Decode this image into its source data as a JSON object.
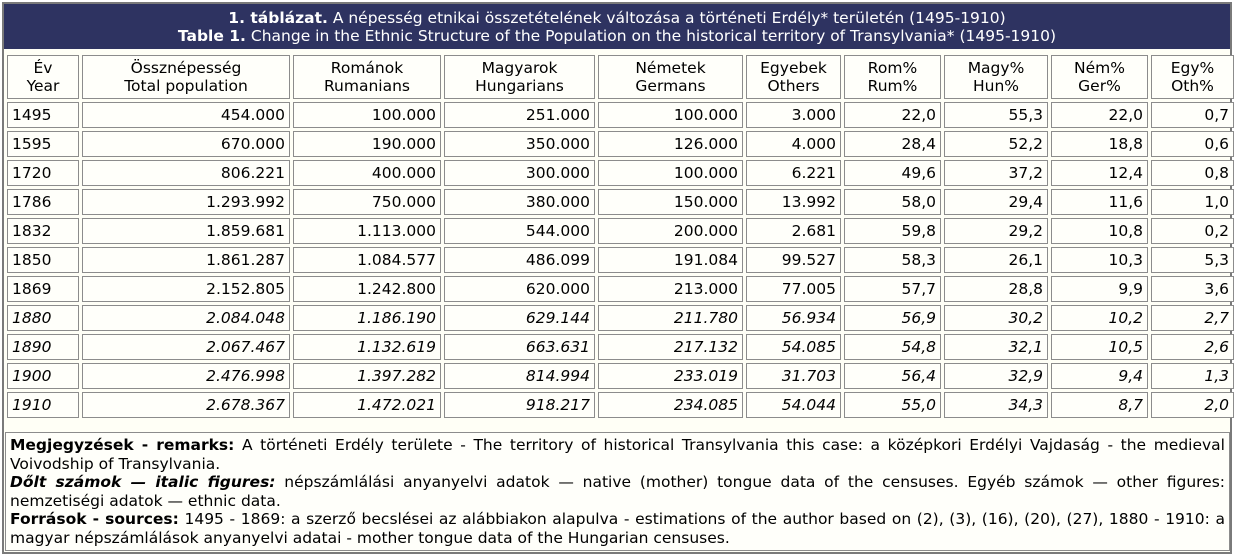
{
  "title": {
    "hu_bold": "1. táblázat.",
    "hu_rest": " A népesség etnikai összetételének változása a történeti Erdély* területén (1495-1910)",
    "en_bold": "Table 1.",
    "en_rest": " Change in the Ethnic Structure of the Population on the historical territory of Transylvania* (1495-1910)"
  },
  "columns": [
    {
      "hu": "Év",
      "en": "Year"
    },
    {
      "hu": "Össznépesség",
      "en": "Total population"
    },
    {
      "hu": "Románok",
      "en": "Rumanians"
    },
    {
      "hu": "Magyarok",
      "en": "Hungarians"
    },
    {
      "hu": "Németek",
      "en": "Germans"
    },
    {
      "hu": "Egyebek",
      "en": "Others"
    },
    {
      "hu": "Rom%",
      "en": "Rum%"
    },
    {
      "hu": "Magy%",
      "en": "Hun%"
    },
    {
      "hu": "Ném%",
      "en": "Ger%"
    },
    {
      "hu": "Egy%",
      "en": "Oth%"
    }
  ],
  "rows": [
    {
      "italic": false,
      "cells": [
        "1495",
        "454.000",
        "100.000",
        "251.000",
        "100.000",
        "3.000",
        "22,0",
        "55,3",
        "22,0",
        "0,7"
      ]
    },
    {
      "italic": false,
      "cells": [
        "1595",
        "670.000",
        "190.000",
        "350.000",
        "126.000",
        "4.000",
        "28,4",
        "52,2",
        "18,8",
        "0,6"
      ]
    },
    {
      "italic": false,
      "cells": [
        "1720",
        "806.221",
        "400.000",
        "300.000",
        "100.000",
        "6.221",
        "49,6",
        "37,2",
        "12,4",
        "0,8"
      ]
    },
    {
      "italic": false,
      "cells": [
        "1786",
        "1.293.992",
        "750.000",
        "380.000",
        "150.000",
        "13.992",
        "58,0",
        "29,4",
        "11,6",
        "1,0"
      ]
    },
    {
      "italic": false,
      "cells": [
        "1832",
        "1.859.681",
        "1.113.000",
        "544.000",
        "200.000",
        "2.681",
        "59,8",
        "29,2",
        "10,8",
        "0,2"
      ]
    },
    {
      "italic": false,
      "cells": [
        "1850",
        "1.861.287",
        "1.084.577",
        "486.099",
        "191.084",
        "99.527",
        "58,3",
        "26,1",
        "10,3",
        "5,3"
      ]
    },
    {
      "italic": false,
      "cells": [
        "1869",
        "2.152.805",
        "1.242.800",
        "620.000",
        "213.000",
        "77.005",
        "57,7",
        "28,8",
        "9,9",
        "3,6"
      ]
    },
    {
      "italic": true,
      "cells": [
        "1880",
        "2.084.048",
        "1.186.190",
        "629.144",
        "211.780",
        "56.934",
        "56,9",
        "30,2",
        "10,2",
        "2,7"
      ]
    },
    {
      "italic": true,
      "cells": [
        "1890",
        "2.067.467",
        "1.132.619",
        "663.631",
        "217.132",
        "54.085",
        "54,8",
        "32,1",
        "10,5",
        "2,6"
      ]
    },
    {
      "italic": true,
      "cells": [
        "1900",
        "2.476.998",
        "1.397.282",
        "814.994",
        "233.019",
        "31.703",
        "56,4",
        "32,9",
        "9,4",
        "1,3"
      ]
    },
    {
      "italic": true,
      "cells": [
        "1910",
        "2.678.367",
        "1.472.021",
        "918.217",
        "234.085",
        "54.044",
        "55,0",
        "34,3",
        "8,7",
        "2,0"
      ]
    }
  ],
  "notes": {
    "remarks_label": "Megjegyzések - remarks:",
    "remarks_text": " A történeti Erdély területe - The territory of historical Transylvania this case: a középkori Erdélyi Vajdaság - the medieval Voivodship of Transylvania.",
    "italic_label": "Dőlt számok — italic figures:",
    "italic_text": " népszámlálási anyanyelvi adatok — native (mother) tongue data of the censuses. Egyéb számok — other figures: nemzetiségi adatok — ethnic data.",
    "sources_label": "Források - sources:",
    "sources_text": " 1495 - 1869: a szerző becslései az alábbiakon alapulva - estimations of the author based on (2), (3), (16), (20), (27), 1880 - 1910: a magyar népszámlálások anyanyelvi adatai - mother tongue data of the Hungarian censuses."
  }
}
